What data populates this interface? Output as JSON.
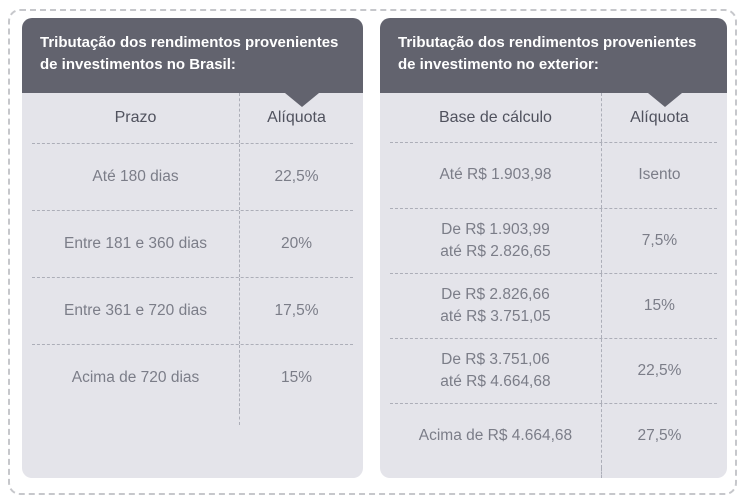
{
  "colors": {
    "background": "#FFFFFF",
    "outer_border_dash": "#C6C7CB",
    "panel_header_bg": "#62636E",
    "panel_body_bg": "#E4E4EA",
    "title_text": "#FFFFFF",
    "column_header_text": "#50525E",
    "cell_text": "#7B7D88",
    "divider_dash": "#ACAEB8"
  },
  "chart_data": [
    {
      "type": "table",
      "title": "Tributação dos rendimentos provenientes de investimentos no Brasil:",
      "columns": [
        "Prazo",
        "Alíquota"
      ],
      "rows": [
        {
          "label": "Até 180 dias",
          "value": "22,5%"
        },
        {
          "label": "Entre 181 e 360 dias",
          "value": "20%"
        },
        {
          "label": "Entre 361 e 720 dias",
          "value": "17,5%"
        },
        {
          "label": "Acima de 720 dias",
          "value": "15%"
        }
      ]
    },
    {
      "type": "table",
      "title": "Tributação dos rendimentos provenientes de investimento no exterior:",
      "columns": [
        "Base de cálculo",
        "Alíquota"
      ],
      "rows": [
        {
          "label_lines": [
            "Até R$ 1.903,98"
          ],
          "value": "Isento"
        },
        {
          "label_lines": [
            "De R$ 1.903,99",
            "até R$ 2.826,65"
          ],
          "value": "7,5%"
        },
        {
          "label_lines": [
            "De R$ 2.826,66",
            "até R$ 3.751,05"
          ],
          "value": "15%"
        },
        {
          "label_lines": [
            "De R$ 3.751,06",
            "até R$ 4.664,68"
          ],
          "value": "22,5%"
        },
        {
          "label_lines": [
            "Acima de R$ 4.664,68"
          ],
          "value": "27,5%"
        }
      ]
    }
  ]
}
